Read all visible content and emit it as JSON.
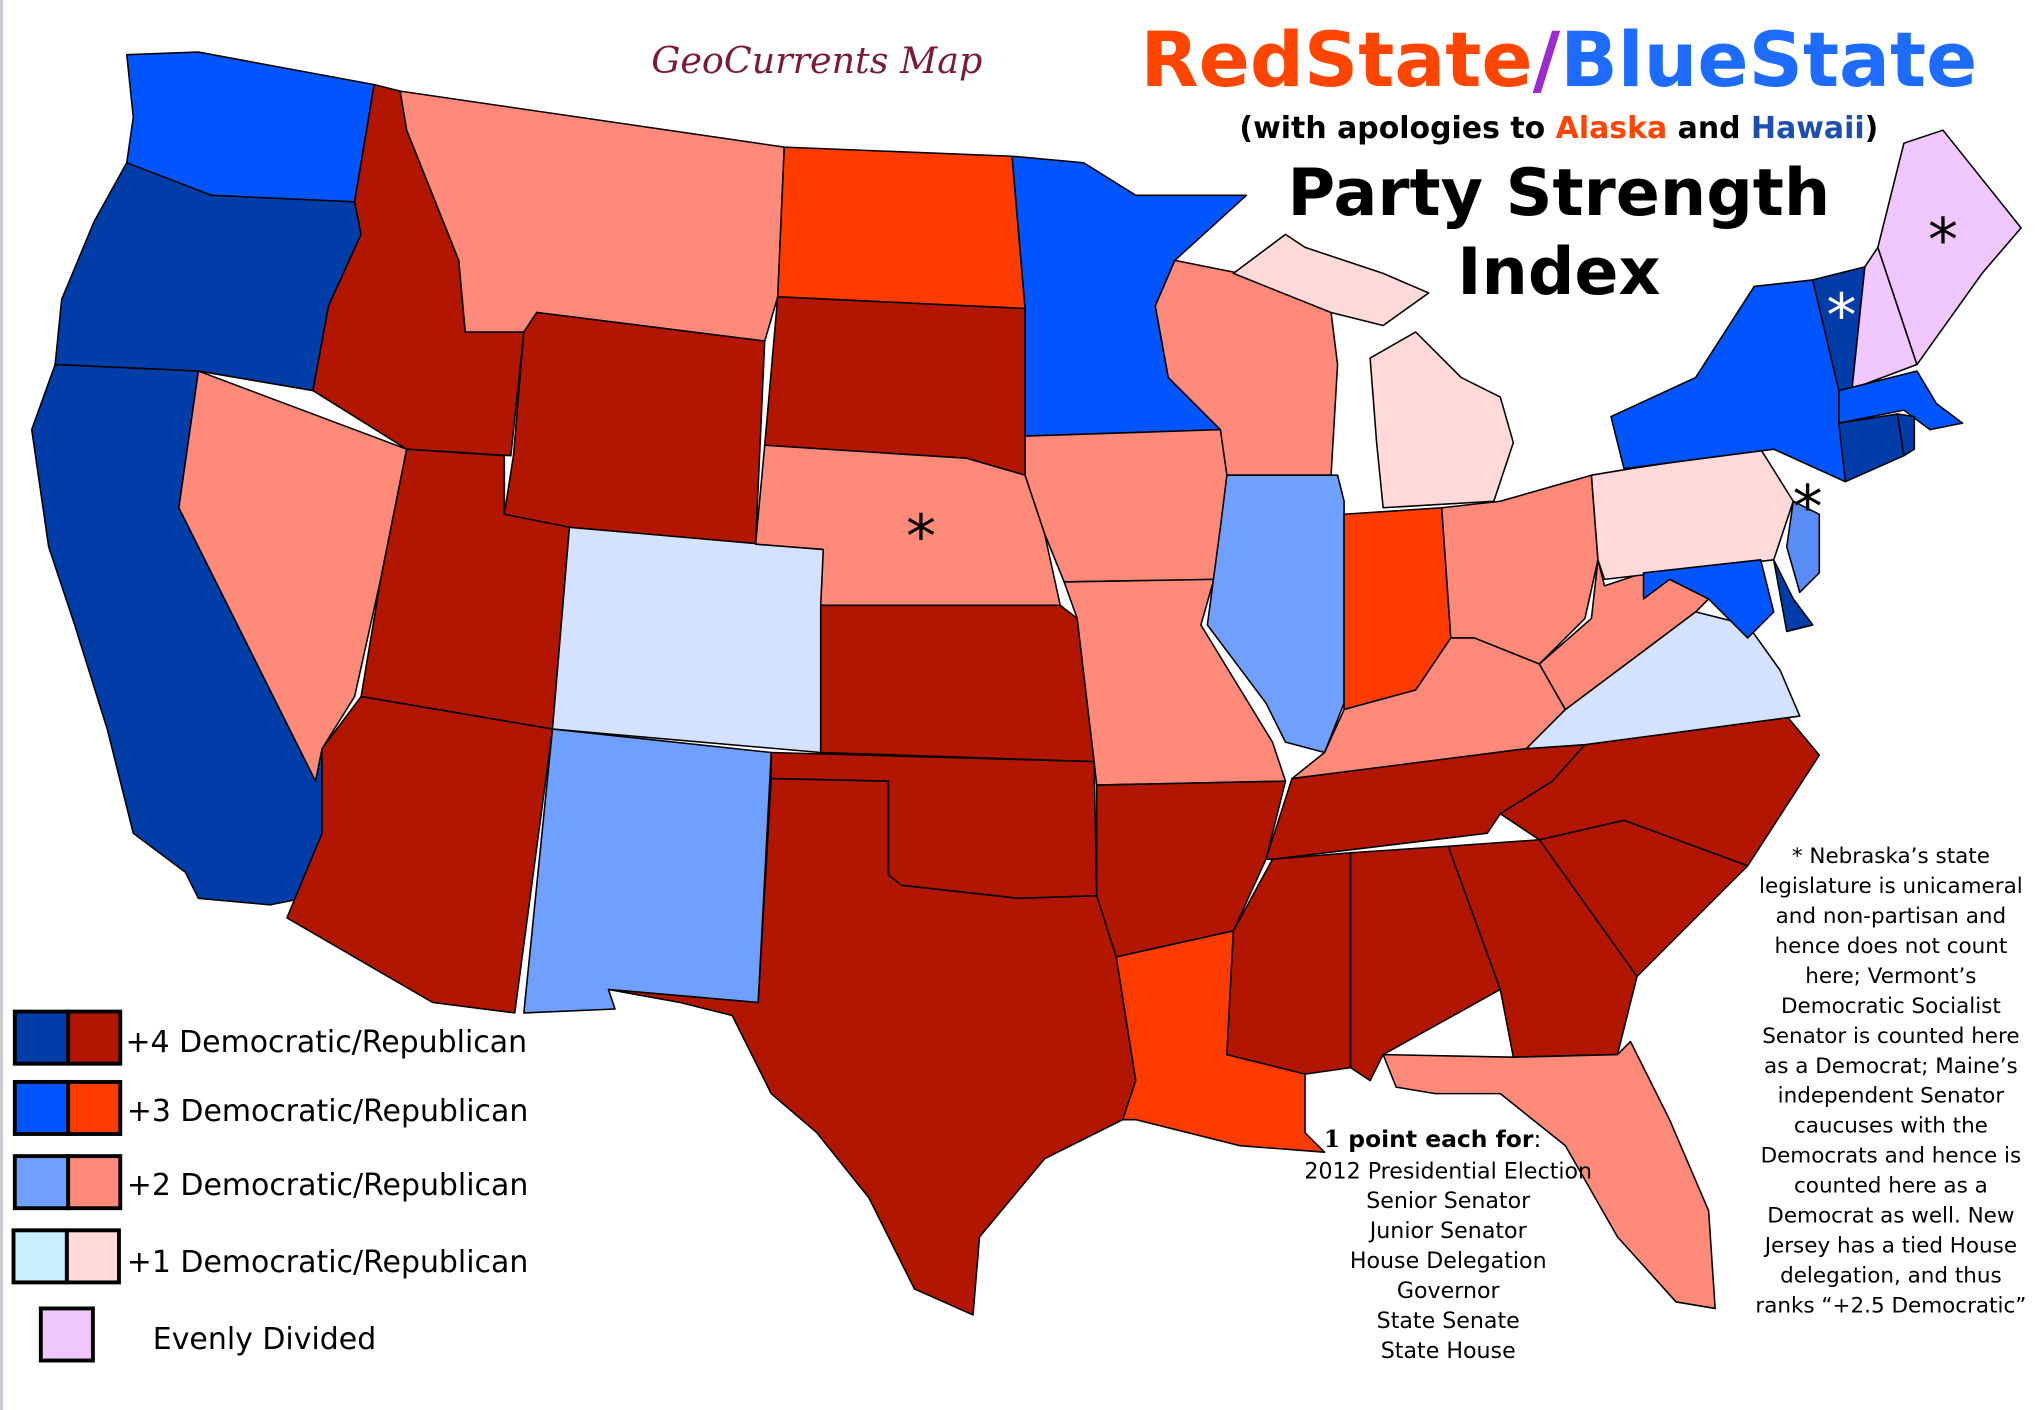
{
  "credit": "GeoCurrents Map",
  "title": {
    "red": "RedState",
    "slash": "/",
    "blue": "BlueState"
  },
  "subtitle": {
    "pre": "(with apologies to ",
    "alaska": "Alaska",
    "mid": " and ",
    "hawaii": "Hawaii",
    "post": ")"
  },
  "heading": {
    "line1": "Party Strength",
    "line2": "Index"
  },
  "colors": {
    "D4": "#003DA8",
    "D3": "#0055FF",
    "D2": "#70A0FF",
    "D1": "#C8EEFF",
    "D2.5": "#5A8CF5",
    "R4": "#B31600",
    "R3": "#FF3B00",
    "R2": "#FF8A7A",
    "R1": "#FFDAD8",
    "E": "#F0C8FF",
    "Dlight": "#D4E2FF",
    "red_title": "#FF4500",
    "blue_title": "#1E6BFF",
    "slash": "#9B2BD1"
  },
  "states": {
    "WA": "D3",
    "OR": "D4",
    "CA": "D4",
    "NV": "R2",
    "ID": "R4",
    "MT": "R2",
    "WY": "R4",
    "UT": "R4",
    "AZ": "R4",
    "CO": "Dlight",
    "NM": "D2",
    "ND": "R3",
    "SD": "R4",
    "NE": "R2",
    "KS": "R4",
    "OK": "R4",
    "TX": "R4",
    "MN": "D3",
    "IA": "R2",
    "MO": "R2",
    "AR": "R4",
    "LA": "R3",
    "WI": "R2",
    "IL": "D2",
    "MI": "R1",
    "IN": "R3",
    "OH": "R2",
    "KY": "R2",
    "TN": "R4",
    "MS": "R4",
    "AL": "R4",
    "GA": "R4",
    "FL": "R2",
    "SC": "R4",
    "NC": "R4",
    "VA": "Dlight",
    "WV": "R2",
    "PA": "R1",
    "NY": "D3",
    "NJ": "D2.5",
    "MD": "D3",
    "DE": "D4",
    "VT": "D4",
    "NH": "E",
    "ME": "E",
    "MA": "D3",
    "CT": "D4",
    "RI": "D4"
  },
  "asterisk": "*",
  "legend": [
    {
      "label": "+4 Democratic/Republican",
      "dem": "D4",
      "rep": "R4"
    },
    {
      "label": "+3 Democratic/Republican",
      "dem": "D3",
      "rep": "R3"
    },
    {
      "label": "+2 Democratic/Republican",
      "dem": "D2",
      "rep": "R2"
    },
    {
      "label": "+1 Democratic/Republican",
      "dem": "D1",
      "rep": "R1"
    },
    {
      "label": "Evenly Divided",
      "even": "E"
    }
  ],
  "points": {
    "heading_num": "1",
    "heading_bold": " point each for",
    "heading_colon": ":",
    "items": [
      "2012 Presidential Election",
      "Senior Senator",
      "Junior Senator",
      "House Delegation",
      "Governor",
      "State Senate",
      "State House"
    ]
  },
  "note": [
    "* Nebraska’s state",
    "legislature is unicameral",
    "and non-partisan and",
    "hence does not count",
    "here; Vermont’s",
    "Democratic Socialist",
    "Senator is counted here",
    "as a Democrat; Maine’s",
    "independent Senator",
    "caucuses with the",
    "Democrats and hence is",
    "counted here as a",
    "Democrat as well. New",
    "Jersey has a tied House",
    "delegation, and thus",
    "ranks “+2.5 Democratic”"
  ]
}
